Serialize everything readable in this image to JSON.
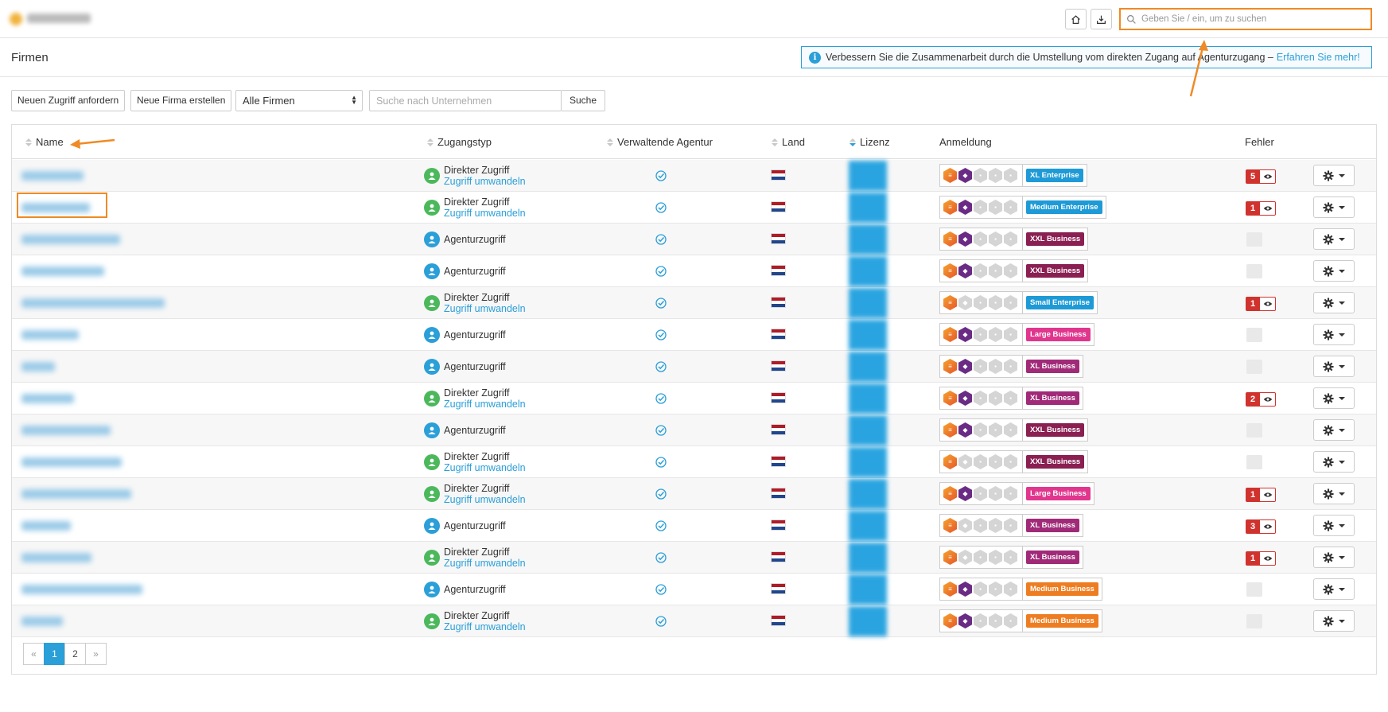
{
  "topbar": {
    "home_icon": "home-icon",
    "download_icon": "download-icon",
    "search_placeholder": "Geben Sie / ein, um zu suchen"
  },
  "page": {
    "title": "Firmen"
  },
  "banner": {
    "text": "Verbessern Sie die Zusammenarbeit durch die Umstellung vom direkten Zugang auf Agenturzugang –",
    "link": "Erfahren Sie mehr!"
  },
  "toolbar": {
    "request_access": "Neuen Zugriff anfordern",
    "create_company": "Neue Firma erstellen",
    "filter_selected": "Alle Firmen",
    "company_search_placeholder": "Suche nach Unternehmen",
    "search_button": "Suche"
  },
  "table": {
    "columns": {
      "name": "Name",
      "access_type": "Zugangstyp",
      "managing_agency": "Verwaltende Agentur",
      "country": "Land",
      "license": "Lizenz",
      "signin": "Anmeldung",
      "errors": "Fehler"
    },
    "direct_label": "Direkter Zugriff",
    "convert_label": "Zugriff umwandeln",
    "agency_label": "Agenturzugriff",
    "rows": [
      {
        "access": "direct",
        "hex2": true,
        "plan": "XL Enterprise",
        "plan_color": "#1e9ad6",
        "errors": "5"
      },
      {
        "access": "direct",
        "hex2": true,
        "plan": "Medium Enterprise",
        "plan_color": "#1e9ad6",
        "errors": "1"
      },
      {
        "access": "agency",
        "hex2": true,
        "plan": "XXL Business",
        "plan_color": "#8a1f52",
        "errors": ""
      },
      {
        "access": "agency",
        "hex2": true,
        "plan": "XXL Business",
        "plan_color": "#8a1f52",
        "errors": ""
      },
      {
        "access": "direct",
        "hex2": false,
        "plan": "Small Enterprise",
        "plan_color": "#1e9ad6",
        "errors": "1"
      },
      {
        "access": "agency",
        "hex2": true,
        "plan": "Large Business",
        "plan_color": "#e0368e",
        "errors": ""
      },
      {
        "access": "agency",
        "hex2": true,
        "plan": "XL Business",
        "plan_color": "#a02a78",
        "errors": ""
      },
      {
        "access": "direct",
        "hex2": true,
        "plan": "XL Business",
        "plan_color": "#a02a78",
        "errors": "2"
      },
      {
        "access": "agency",
        "hex2": true,
        "plan": "XXL Business",
        "plan_color": "#8a1f52",
        "errors": ""
      },
      {
        "access": "direct",
        "hex2": false,
        "plan": "XXL Business",
        "plan_color": "#8a1f52",
        "errors": ""
      },
      {
        "access": "direct",
        "hex2": true,
        "plan": "Large Business",
        "plan_color": "#e0368e",
        "errors": "1"
      },
      {
        "access": "agency",
        "hex2": false,
        "plan": "XL Business",
        "plan_color": "#a02a78",
        "errors": "3"
      },
      {
        "access": "direct",
        "hex2": false,
        "plan": "XL Business",
        "plan_color": "#a02a78",
        "errors": "1"
      },
      {
        "access": "agency",
        "hex2": true,
        "plan": "Medium Business",
        "plan_color": "#ee7d22",
        "errors": ""
      },
      {
        "access": "direct",
        "hex2": true,
        "plan": "Medium Business",
        "plan_color": "#ee7d22",
        "errors": ""
      }
    ]
  },
  "pagination": {
    "prev": "«",
    "pages": [
      "1",
      "2"
    ],
    "current": "1",
    "next": "»"
  },
  "colors": {
    "accent": "#2a9fd8",
    "highlight": "#f08a24",
    "direct_access": "#4cb85c",
    "error": "#d0332e"
  }
}
